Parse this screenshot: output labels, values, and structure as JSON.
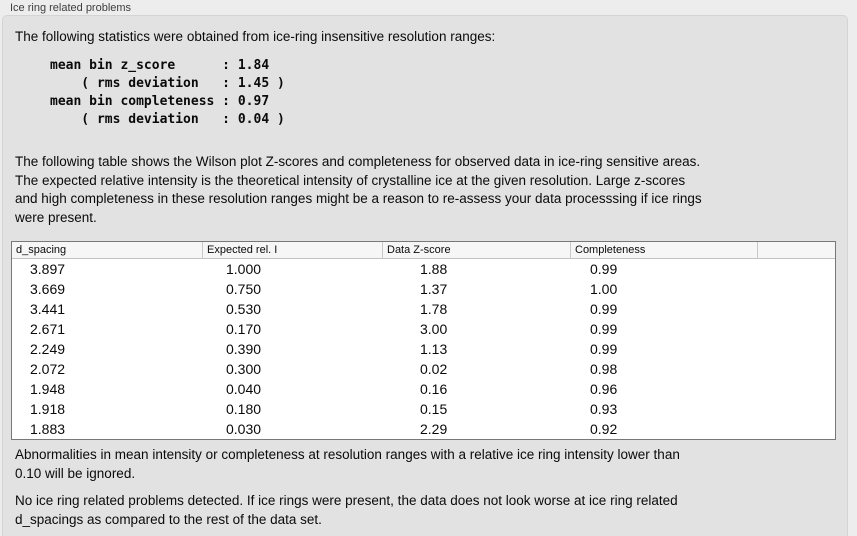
{
  "group": {
    "label": "Ice ring related problems"
  },
  "panel": {
    "intro": "The following statistics were obtained from ice-ring insensitive resolution ranges:",
    "stats_lines": [
      "mean bin z_score      : 1.84",
      "    ( rms deviation   : 1.45 )",
      "mean bin completeness : 0.97",
      "    ( rms deviation   : 0.04 )"
    ],
    "description_lines": [
      "The following table shows the Wilson plot Z-scores and completeness for observed data in ice-ring sensitive areas.",
      "The expected relative intensity is the theoretical intensity of crystalline ice at the given resolution. Large z-scores",
      "and high completeness in these resolution ranges might be a reason to re-assess your data processsing if ice rings",
      "were present."
    ],
    "ignore_lines": [
      "Abnormalities in mean intensity or completeness at resolution ranges with a relative ice ring intensity lower than",
      "0.10 will be ignored."
    ],
    "conclusion_lines": [
      "No ice ring related problems detected. If ice rings were present, the data does not look worse at ice ring related",
      "d_spacings as compared to the rest of the data set."
    ]
  },
  "table": {
    "columns": [
      "d_spacing",
      "Expected rel. I",
      "Data Z-score",
      "Completeness"
    ],
    "rows": [
      [
        "3.897",
        "1.000",
        "1.88",
        "0.99"
      ],
      [
        "3.669",
        "0.750",
        "1.37",
        "1.00"
      ],
      [
        "3.441",
        "0.530",
        "1.78",
        "0.99"
      ],
      [
        "2.671",
        "0.170",
        "3.00",
        "0.99"
      ],
      [
        "2.249",
        "0.390",
        "1.13",
        "0.99"
      ],
      [
        "2.072",
        "0.300",
        "0.02",
        "0.98"
      ],
      [
        "1.948",
        "0.040",
        "0.16",
        "0.96"
      ],
      [
        "1.918",
        "0.180",
        "0.15",
        "0.93"
      ],
      [
        "1.883",
        "0.030",
        "2.29",
        "0.92"
      ]
    ]
  },
  "colors": {
    "outer_bg": "#ededed",
    "panel_bg": "#e2e2e2",
    "panel_border": "#d4d4d4",
    "table_border": "#787878",
    "table_header_bg": "#f6f6f6",
    "table_header_separator": "#c8c8c8",
    "label_text": "#3d3d3d",
    "body_text": "#0a0a0a"
  }
}
